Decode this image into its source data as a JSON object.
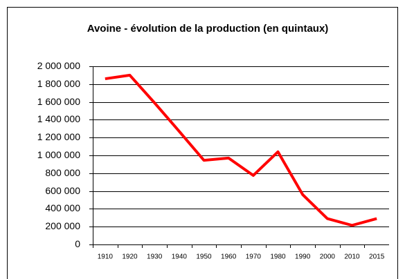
{
  "chart_data": {
    "type": "line",
    "title": "Avoine - évolution de la production (en quintaux)",
    "categories": [
      "1910",
      "1920",
      "1930",
      "1940",
      "1950",
      "1960",
      "1970",
      "1980",
      "1990",
      "2000",
      "2010",
      "2015"
    ],
    "values": [
      1860000,
      1900000,
      1590000,
      1270000,
      945000,
      970000,
      775000,
      1040000,
      560000,
      290000,
      215000,
      290000
    ],
    "color": "#ff0000",
    "ylim": [
      0,
      2000000
    ],
    "yticks": [
      0,
      {
        "value": 200000,
        "label": "200 000"
      },
      {
        "value": 400000,
        "label": "400 000"
      },
      {
        "value": 600000,
        "label": "600 000"
      },
      {
        "value": 800000,
        "label": "800 000"
      },
      {
        "value": 1000000,
        "label": "1 000 000"
      },
      {
        "value": 1200000,
        "label": "1 200 000"
      },
      {
        "value": 1400000,
        "label": "1 400 000"
      },
      {
        "value": 1600000,
        "label": "1 600 000"
      },
      {
        "value": 1800000,
        "label": "1 800 000"
      },
      {
        "value": 2000000,
        "label": "2 000 000"
      }
    ],
    "grid": true
  }
}
